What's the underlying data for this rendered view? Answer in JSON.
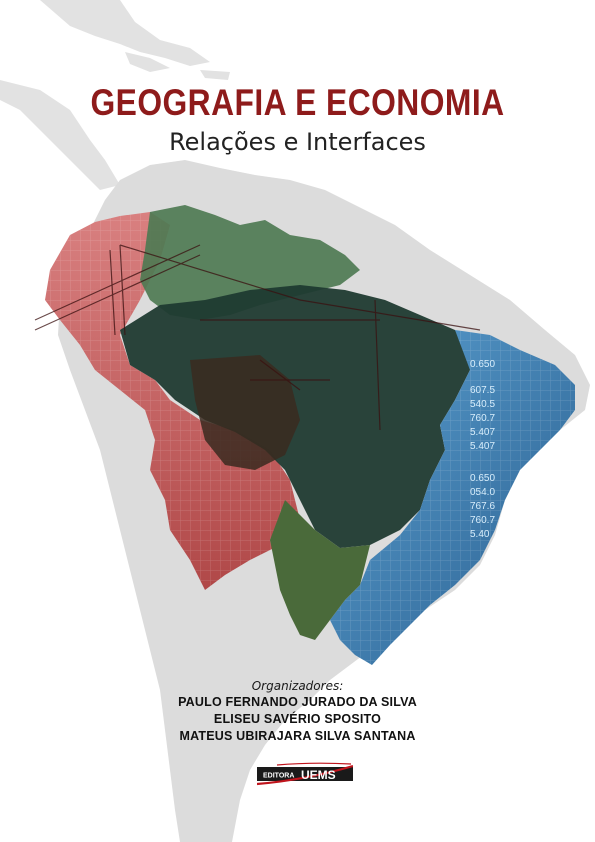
{
  "book": {
    "title": "GEOGRAFIA E ECONOMIA",
    "subtitle": "Relações e Interfaces"
  },
  "organizers": {
    "label": "Organizadores:",
    "names": [
      "PAULO FERNANDO JURADO DA SILVA",
      "ELISEU SAVÉRIO SPOSITO",
      "MATEUS UBIRAJARA SILVA SANTANA"
    ]
  },
  "publisher": {
    "prefix": "EDITORA",
    "name": "UEMS"
  },
  "stock_ticker": {
    "values": [
      "0.650",
      "607.5",
      "540.5",
      "760.7",
      "5.407",
      "5.407",
      "0.650",
      "054.0",
      "767.6",
      "760.7",
      "5.40"
    ]
  },
  "colors": {
    "title": "#8e1b1b",
    "subtitle": "#222222",
    "continent": "#dcdcdc",
    "region_red": "#c85a5a",
    "region_green": "#2e5a3e",
    "region_dark": "#1e2e28",
    "region_blue": "#3d7ab0",
    "publisher_bar": "#1a1a1a",
    "publisher_accent": "#c0141c"
  }
}
